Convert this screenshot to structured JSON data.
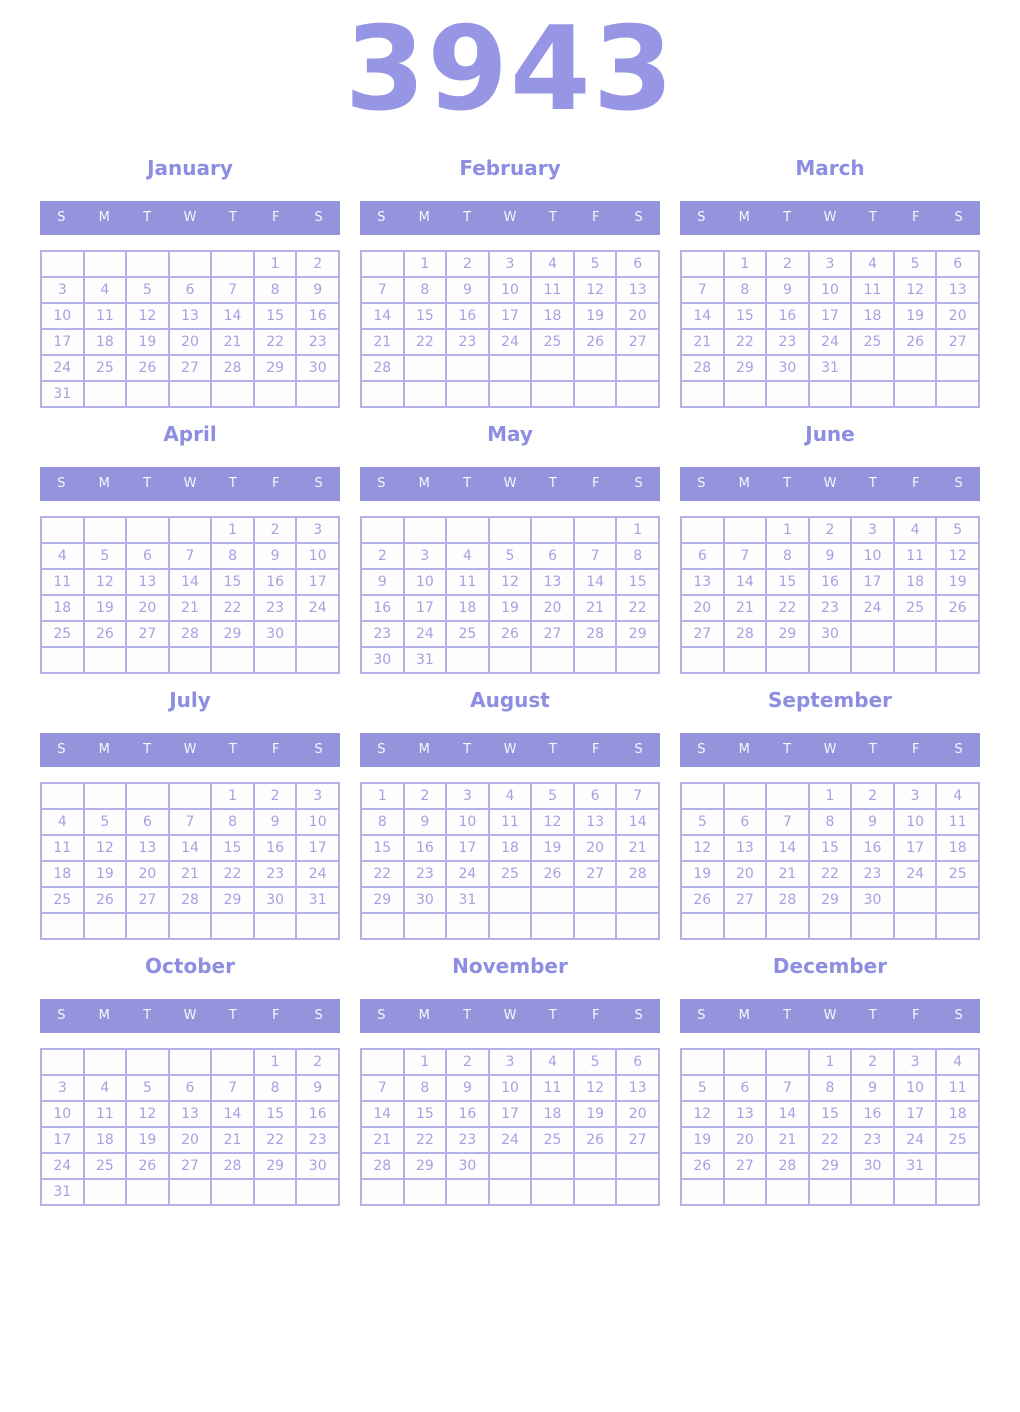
{
  "year": "3943",
  "weekday_labels": [
    "S",
    "M",
    "T",
    "W",
    "T",
    "F",
    "S"
  ],
  "colors": {
    "accent_band": "#9494dd",
    "title_text": "#8d8de2",
    "year_text": "#9696e4",
    "day_number": "#a3a3e0",
    "grid_border": "#b2b2e8",
    "weekday_text": "#f7f6fd",
    "background": "#ffffff"
  },
  "months": [
    {
      "name": "January",
      "weeks": [
        [
          "",
          "",
          "",
          "",
          "",
          "1",
          "2"
        ],
        [
          "3",
          "4",
          "5",
          "6",
          "7",
          "8",
          "9"
        ],
        [
          "10",
          "11",
          "12",
          "13",
          "14",
          "15",
          "16"
        ],
        [
          "17",
          "18",
          "19",
          "20",
          "21",
          "22",
          "23"
        ],
        [
          "24",
          "25",
          "26",
          "27",
          "28",
          "29",
          "30"
        ],
        [
          "31",
          "",
          "",
          "",
          "",
          "",
          ""
        ]
      ]
    },
    {
      "name": "February",
      "weeks": [
        [
          "",
          "1",
          "2",
          "3",
          "4",
          "5",
          "6"
        ],
        [
          "7",
          "8",
          "9",
          "10",
          "11",
          "12",
          "13"
        ],
        [
          "14",
          "15",
          "16",
          "17",
          "18",
          "19",
          "20"
        ],
        [
          "21",
          "22",
          "23",
          "24",
          "25",
          "26",
          "27"
        ],
        [
          "28",
          "",
          "",
          "",
          "",
          "",
          ""
        ],
        [
          "",
          "",
          "",
          "",
          "",
          "",
          ""
        ]
      ]
    },
    {
      "name": "March",
      "weeks": [
        [
          "",
          "1",
          "2",
          "3",
          "4",
          "5",
          "6"
        ],
        [
          "7",
          "8",
          "9",
          "10",
          "11",
          "12",
          "13"
        ],
        [
          "14",
          "15",
          "16",
          "17",
          "18",
          "19",
          "20"
        ],
        [
          "21",
          "22",
          "23",
          "24",
          "25",
          "26",
          "27"
        ],
        [
          "28",
          "29",
          "30",
          "31",
          "",
          "",
          ""
        ],
        [
          "",
          "",
          "",
          "",
          "",
          "",
          ""
        ]
      ]
    },
    {
      "name": "April",
      "weeks": [
        [
          "",
          "",
          "",
          "",
          "1",
          "2",
          "3"
        ],
        [
          "4",
          "5",
          "6",
          "7",
          "8",
          "9",
          "10"
        ],
        [
          "11",
          "12",
          "13",
          "14",
          "15",
          "16",
          "17"
        ],
        [
          "18",
          "19",
          "20",
          "21",
          "22",
          "23",
          "24"
        ],
        [
          "25",
          "26",
          "27",
          "28",
          "29",
          "30",
          ""
        ],
        [
          "",
          "",
          "",
          "",
          "",
          "",
          ""
        ]
      ]
    },
    {
      "name": "May",
      "weeks": [
        [
          "",
          "",
          "",
          "",
          "",
          "",
          "1"
        ],
        [
          "2",
          "3",
          "4",
          "5",
          "6",
          "7",
          "8"
        ],
        [
          "9",
          "10",
          "11",
          "12",
          "13",
          "14",
          "15"
        ],
        [
          "16",
          "17",
          "18",
          "19",
          "20",
          "21",
          "22"
        ],
        [
          "23",
          "24",
          "25",
          "26",
          "27",
          "28",
          "29"
        ],
        [
          "30",
          "31",
          "",
          "",
          "",
          "",
          ""
        ]
      ]
    },
    {
      "name": "June",
      "weeks": [
        [
          "",
          "",
          "1",
          "2",
          "3",
          "4",
          "5"
        ],
        [
          "6",
          "7",
          "8",
          "9",
          "10",
          "11",
          "12"
        ],
        [
          "13",
          "14",
          "15",
          "16",
          "17",
          "18",
          "19"
        ],
        [
          "20",
          "21",
          "22",
          "23",
          "24",
          "25",
          "26"
        ],
        [
          "27",
          "28",
          "29",
          "30",
          "",
          "",
          ""
        ],
        [
          "",
          "",
          "",
          "",
          "",
          "",
          ""
        ]
      ]
    },
    {
      "name": "July",
      "weeks": [
        [
          "",
          "",
          "",
          "",
          "1",
          "2",
          "3"
        ],
        [
          "4",
          "5",
          "6",
          "7",
          "8",
          "9",
          "10"
        ],
        [
          "11",
          "12",
          "13",
          "14",
          "15",
          "16",
          "17"
        ],
        [
          "18",
          "19",
          "20",
          "21",
          "22",
          "23",
          "24"
        ],
        [
          "25",
          "26",
          "27",
          "28",
          "29",
          "30",
          "31"
        ],
        [
          "",
          "",
          "",
          "",
          "",
          "",
          ""
        ]
      ]
    },
    {
      "name": "August",
      "weeks": [
        [
          "1",
          "2",
          "3",
          "4",
          "5",
          "6",
          "7"
        ],
        [
          "8",
          "9",
          "10",
          "11",
          "12",
          "13",
          "14"
        ],
        [
          "15",
          "16",
          "17",
          "18",
          "19",
          "20",
          "21"
        ],
        [
          "22",
          "23",
          "24",
          "25",
          "26",
          "27",
          "28"
        ],
        [
          "29",
          "30",
          "31",
          "",
          "",
          "",
          ""
        ],
        [
          "",
          "",
          "",
          "",
          "",
          "",
          ""
        ]
      ]
    },
    {
      "name": "September",
      "weeks": [
        [
          "",
          "",
          "",
          "1",
          "2",
          "3",
          "4"
        ],
        [
          "5",
          "6",
          "7",
          "8",
          "9",
          "10",
          "11"
        ],
        [
          "12",
          "13",
          "14",
          "15",
          "16",
          "17",
          "18"
        ],
        [
          "19",
          "20",
          "21",
          "22",
          "23",
          "24",
          "25"
        ],
        [
          "26",
          "27",
          "28",
          "29",
          "30",
          "",
          ""
        ],
        [
          "",
          "",
          "",
          "",
          "",
          "",
          ""
        ]
      ]
    },
    {
      "name": "October",
      "weeks": [
        [
          "",
          "",
          "",
          "",
          "",
          "1",
          "2"
        ],
        [
          "3",
          "4",
          "5",
          "6",
          "7",
          "8",
          "9"
        ],
        [
          "10",
          "11",
          "12",
          "13",
          "14",
          "15",
          "16"
        ],
        [
          "17",
          "18",
          "19",
          "20",
          "21",
          "22",
          "23"
        ],
        [
          "24",
          "25",
          "26",
          "27",
          "28",
          "29",
          "30"
        ],
        [
          "31",
          "",
          "",
          "",
          "",
          "",
          ""
        ]
      ]
    },
    {
      "name": "November",
      "weeks": [
        [
          "",
          "1",
          "2",
          "3",
          "4",
          "5",
          "6"
        ],
        [
          "7",
          "8",
          "9",
          "10",
          "11",
          "12",
          "13"
        ],
        [
          "14",
          "15",
          "16",
          "17",
          "18",
          "19",
          "20"
        ],
        [
          "21",
          "22",
          "23",
          "24",
          "25",
          "26",
          "27"
        ],
        [
          "28",
          "29",
          "30",
          "",
          "",
          "",
          ""
        ],
        [
          "",
          "",
          "",
          "",
          "",
          "",
          ""
        ]
      ]
    },
    {
      "name": "December",
      "weeks": [
        [
          "",
          "",
          "",
          "1",
          "2",
          "3",
          "4"
        ],
        [
          "5",
          "6",
          "7",
          "8",
          "9",
          "10",
          "11"
        ],
        [
          "12",
          "13",
          "14",
          "15",
          "16",
          "17",
          "18"
        ],
        [
          "19",
          "20",
          "21",
          "22",
          "23",
          "24",
          "25"
        ],
        [
          "26",
          "27",
          "28",
          "29",
          "30",
          "31",
          ""
        ],
        [
          "",
          "",
          "",
          "",
          "",
          "",
          ""
        ]
      ]
    }
  ]
}
